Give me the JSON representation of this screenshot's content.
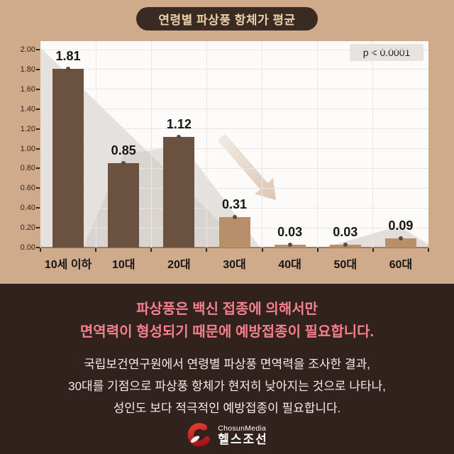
{
  "chart_data": {
    "type": "bar",
    "title": "연령별 파상풍 항체가 평균",
    "p_label": "p < 0.0001",
    "categories": [
      "10세 이하",
      "10대",
      "20대",
      "30대",
      "40대",
      "50대",
      "60대"
    ],
    "values": [
      1.81,
      0.85,
      1.12,
      0.31,
      0.03,
      0.03,
      0.09
    ],
    "value_labels": [
      "1.81",
      "0.85",
      "1.12",
      "0.31",
      "0.03",
      "0.03",
      "0.09"
    ],
    "bar_styles": [
      "dark",
      "dark",
      "dark",
      "light",
      "light",
      "light",
      "light"
    ],
    "ylim": [
      0,
      2.0
    ],
    "ytick_labels": [
      "0.00",
      "0.20",
      "0.40",
      "0.60",
      "0.80",
      "1.00",
      "1.20",
      "1.40",
      "1.60",
      "1.80",
      "2.00"
    ],
    "grid": true,
    "legend": false,
    "decorations": [
      "background-trend-area",
      "declining-trend-arrow"
    ]
  },
  "bottom": {
    "statement": {
      "lines": [
        "파상풍은 백신 접종에 의해서만",
        "면역력이 형성되기 때문에 예방접종이 필요합니다."
      ]
    },
    "description": {
      "lines": [
        "국립보건연구원에서 연령별 파상풍 면역력을 조사한 결과,",
        "30대를 기점으로 파상풍 항체가 현저히 낮아지는 것으로 나타나,",
        "성인도 보다 적극적인 예방접종이 필요합니다."
      ]
    },
    "logo": {
      "brand": "ChosunMedia",
      "name": "헬스조선"
    }
  },
  "colors": {
    "bg-top": "#cfaa8b",
    "pill-bg": "#3a2a24",
    "pill-text": "#eacfa6",
    "plot-bg": "#fcfbfa",
    "grid-line": "#e8e6e3",
    "axis-line": "#9b7b5e",
    "bar-dark": "#6b5140",
    "bar-light": "#b7906b",
    "dot": "#5a4c44",
    "value-text": "#161616",
    "tick-text": "#30261e",
    "pbox-bg": "#e7e4e0",
    "pbox-text": "#1e1e1e",
    "area-fill": "#cdc7c1",
    "bottom-bg": "#31221d",
    "pink": "#f47f8e",
    "body-text": "#f2ede8",
    "logo-red": "#cc1021"
  }
}
